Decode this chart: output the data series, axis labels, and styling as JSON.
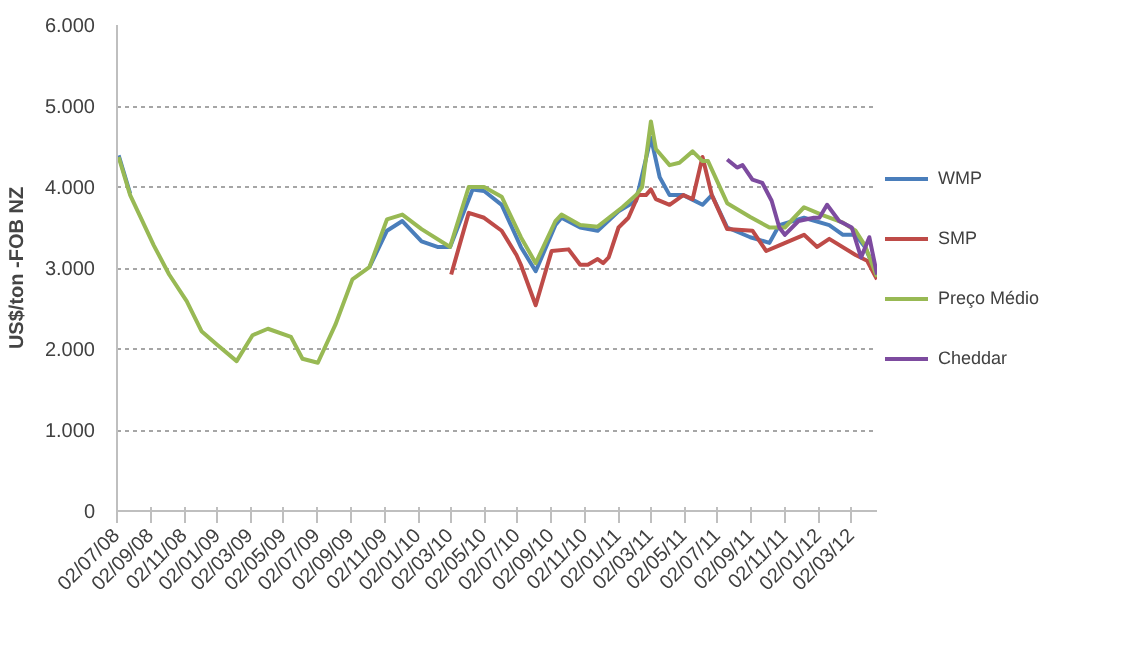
{
  "chart_data": {
    "type": "line",
    "ylabel": "US$/ton -FOB NZ",
    "xlim": [
      "2008-07-02",
      "2012-04-17"
    ],
    "xticks": [
      {
        "value": "2008-07-02",
        "label": "02/07/08"
      },
      {
        "value": "2008-09-02",
        "label": "02/09/08"
      },
      {
        "value": "2008-11-02",
        "label": "02/11/08"
      },
      {
        "value": "2009-01-02",
        "label": "02/01/09"
      },
      {
        "value": "2009-03-02",
        "label": "02/03/09"
      },
      {
        "value": "2009-05-02",
        "label": "02/05/09"
      },
      {
        "value": "2009-07-02",
        "label": "02/07/09"
      },
      {
        "value": "2009-09-02",
        "label": "02/09/09"
      },
      {
        "value": "2009-11-02",
        "label": "02/11/09"
      },
      {
        "value": "2010-01-02",
        "label": "02/01/10"
      },
      {
        "value": "2010-03-02",
        "label": "02/03/10"
      },
      {
        "value": "2010-05-02",
        "label": "02/05/10"
      },
      {
        "value": "2010-07-02",
        "label": "02/07/10"
      },
      {
        "value": "2010-09-02",
        "label": "02/09/10"
      },
      {
        "value": "2010-11-02",
        "label": "02/11/10"
      },
      {
        "value": "2011-01-02",
        "label": "02/01/11"
      },
      {
        "value": "2011-03-02",
        "label": "02/03/11"
      },
      {
        "value": "2011-05-02",
        "label": "02/05/11"
      },
      {
        "value": "2011-07-02",
        "label": "02/07/11"
      },
      {
        "value": "2011-09-02",
        "label": "02/09/11"
      },
      {
        "value": "2011-11-02",
        "label": "02/11/11"
      },
      {
        "value": "2012-01-02",
        "label": "02/01/12"
      },
      {
        "value": "2012-03-02",
        "label": "02/03/12"
      }
    ],
    "ylim": [
      0,
      6000
    ],
    "yticks": [
      0,
      {
        "value": 1000,
        "label": "1.000"
      },
      {
        "value": 2000,
        "label": "2.000"
      },
      {
        "value": 3000,
        "label": "3.000"
      },
      {
        "value": 4000,
        "label": "4.000"
      },
      {
        "value": 5000,
        "label": "5.000"
      },
      {
        "value": 6000,
        "label": "6.000"
      }
    ],
    "grid": "y",
    "legend": "right",
    "line_style": "solid",
    "marker": "none",
    "series": [
      {
        "name": "WMP",
        "color": "#4a7ebb",
        "x": [
          "2008-07-05",
          "2008-07-26",
          "2008-09-07",
          "2009-10-05",
          "2009-11-06",
          "2009-12-04",
          "2010-01-08",
          "2010-02-06",
          "2010-03-01",
          "2010-04-11",
          "2010-05-02",
          "2010-06-03",
          "2010-07-08",
          "2010-08-04",
          "2010-09-09",
          "2010-09-20",
          "2010-10-24",
          "2010-11-25",
          "2011-01-02",
          "2011-02-03",
          "2011-03-02",
          "2011-03-18",
          "2011-04-05",
          "2011-04-30",
          "2011-06-04",
          "2011-06-21",
          "2011-07-19",
          "2011-08-30",
          "2011-10-04",
          "2011-10-22",
          "2011-12-06",
          "2012-01-21",
          "2012-02-15",
          "2012-03-09",
          "2012-03-26",
          "2012-04-17"
        ],
        "values": [
          4390,
          3920,
          null,
          3010,
          3460,
          3580,
          3330,
          3260,
          3260,
          3970,
          3950,
          3780,
          3260,
          2960,
          3530,
          3620,
          3500,
          3460,
          3700,
          3830,
          4610,
          4120,
          3900,
          3900,
          3780,
          3900,
          3500,
          3380,
          3310,
          3530,
          3620,
          3530,
          3410,
          3410,
          3260,
          2920
        ]
      },
      {
        "name": "SMP",
        "color": "#be4b48",
        "x": [
          "2010-03-03",
          "2010-04-04",
          "2010-05-02",
          "2010-06-03",
          "2010-06-30",
          "2010-07-08",
          "2010-08-04",
          "2010-09-02",
          "2010-10-03",
          "2010-10-24",
          "2010-11-07",
          "2010-11-25",
          "2010-12-05",
          "2010-12-15",
          "2011-01-02",
          "2011-01-20",
          "2011-02-07",
          "2011-02-21",
          "2011-03-02",
          "2011-03-11",
          "2011-04-05",
          "2011-04-30",
          "2011-05-17",
          "2011-06-04",
          "2011-06-21",
          "2011-07-19",
          "2011-09-03",
          "2011-09-28",
          "2011-10-22",
          "2011-12-06",
          "2011-12-30",
          "2012-01-21",
          "2012-03-09",
          "2012-03-30",
          "2012-04-17"
        ],
        "values": [
          2920,
          3680,
          3620,
          3460,
          3160,
          3040,
          2540,
          3210,
          3230,
          3040,
          3040,
          3110,
          3060,
          3130,
          3500,
          3620,
          3900,
          3900,
          3970,
          3850,
          3780,
          3900,
          3850,
          4370,
          3900,
          3480,
          3460,
          3210,
          3280,
          3410,
          3260,
          3360,
          3160,
          3090,
          2860
        ]
      },
      {
        "name": "Preço Médio",
        "color": "#98b954",
        "x": [
          "2008-07-05",
          "2008-07-26",
          "2008-09-07",
          "2008-10-05",
          "2008-11-06",
          "2008-12-03",
          "2009-01-01",
          "2009-02-05",
          "2009-03-06",
          "2009-04-03",
          "2009-05-15",
          "2009-06-05",
          "2009-07-03",
          "2009-08-04",
          "2009-09-04",
          "2009-10-05",
          "2009-11-06",
          "2009-12-04",
          "2010-01-08",
          "2010-03-01",
          "2010-04-04",
          "2010-05-02",
          "2010-06-03",
          "2010-07-08",
          "2010-08-04",
          "2010-09-09",
          "2010-09-20",
          "2010-10-24",
          "2010-11-25",
          "2011-01-09",
          "2011-02-03",
          "2011-02-14",
          "2011-03-02",
          "2011-03-11",
          "2011-04-05",
          "2011-04-23",
          "2011-05-17",
          "2011-06-04",
          "2011-06-14",
          "2011-07-19",
          "2011-08-30",
          "2011-10-04",
          "2011-11-01",
          "2011-12-06",
          "2012-01-10",
          "2012-02-15",
          "2012-03-09",
          "2012-03-26",
          "2012-04-17"
        ],
        "values": [
          4370,
          3900,
          3280,
          2920,
          2590,
          2220,
          2050,
          1850,
          2170,
          2250,
          2150,
          1880,
          1830,
          2300,
          2860,
          3010,
          3600,
          3660,
          3480,
          3260,
          4000,
          4000,
          3880,
          3380,
          3060,
          3580,
          3660,
          3530,
          3510,
          3750,
          3900,
          4000,
          4810,
          4470,
          4270,
          4300,
          4440,
          4320,
          4320,
          3800,
          3630,
          3500,
          3500,
          3750,
          3650,
          3560,
          3460,
          3280,
          2890
        ]
      },
      {
        "name": "Cheddar",
        "color": "#7d4b9f",
        "x": [
          "2011-07-19",
          "2011-08-06",
          "2011-08-16",
          "2011-09-03",
          "2011-09-21",
          "2011-10-08",
          "2011-10-22",
          "2011-11-01",
          "2011-11-26",
          "2011-12-24",
          "2012-01-03",
          "2012-01-17",
          "2012-02-08",
          "2012-03-02",
          "2012-03-19",
          "2012-04-03",
          "2012-04-17"
        ],
        "values": [
          4340,
          4240,
          4270,
          4090,
          4050,
          3830,
          3500,
          3410,
          3580,
          3620,
          3620,
          3780,
          3580,
          3500,
          3130,
          3380,
          2920
        ]
      }
    ]
  }
}
